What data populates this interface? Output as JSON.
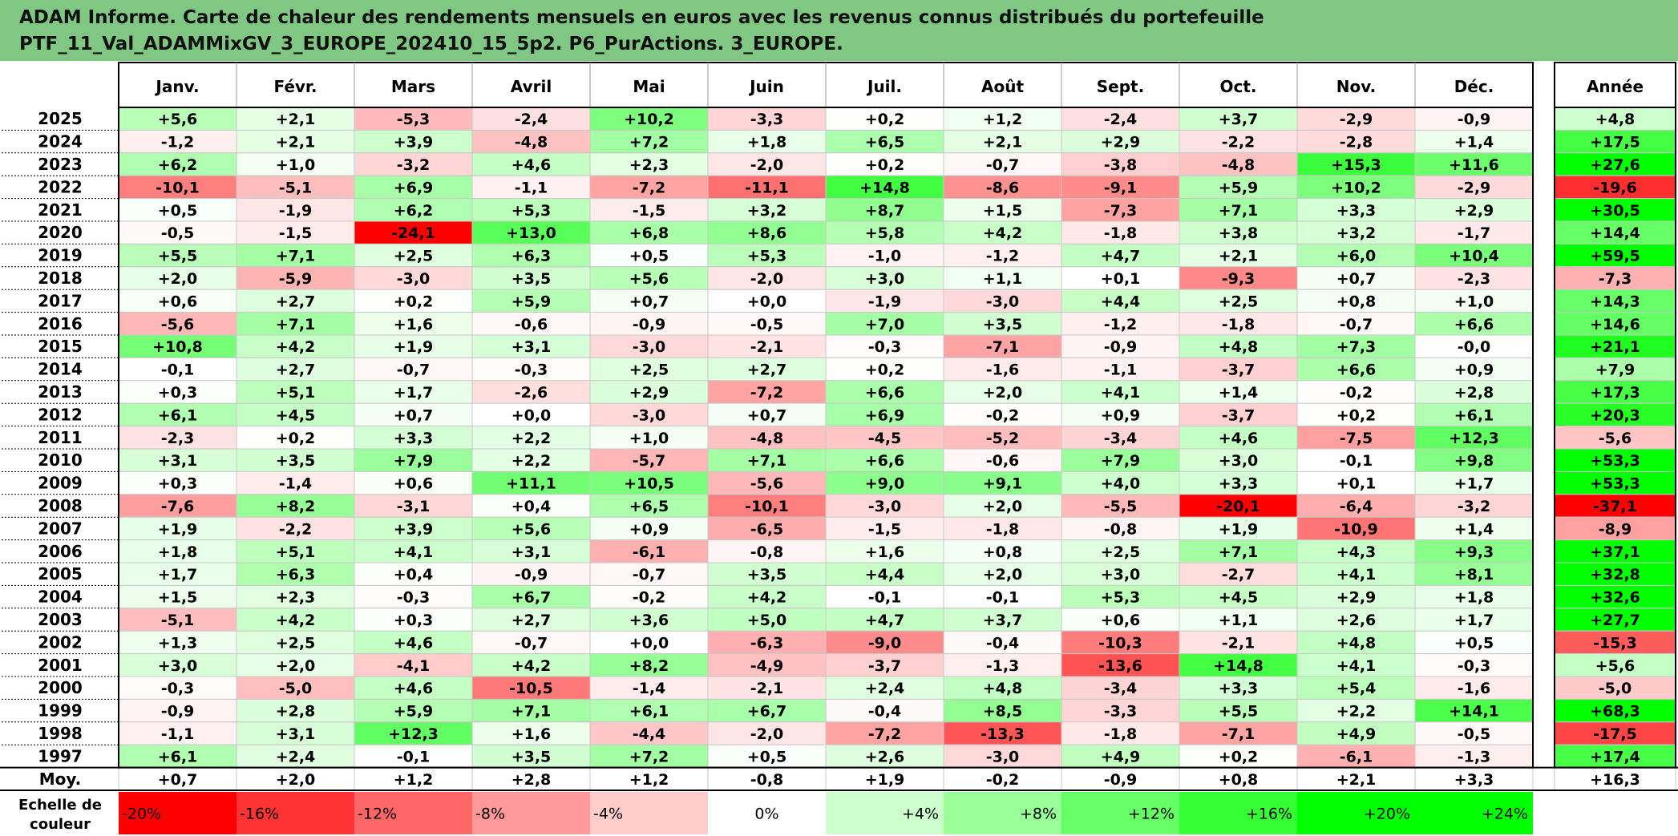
{
  "title": {
    "line1": "ADAM Informe. Carte de chaleur des rendements mensuels en euros avec les revenus connus distribués du portefeuille",
    "line2": "PTF_11_Val_ADAMMixGV_3_EUROPE_202410_15_5p2. P6_PurActions. 3_EUROPE."
  },
  "chart_data": {
    "type": "heatmap",
    "months": [
      "Janv.",
      "Févr.",
      "Mars",
      "Avril",
      "Mai",
      "Juin",
      "Juil.",
      "Août",
      "Sept.",
      "Oct.",
      "Nov.",
      "Déc."
    ],
    "year_column_label": "Année",
    "rows": [
      {
        "year": "2025",
        "values": [
          "+5,6",
          "+2,1",
          "-5,3",
          "-2,4",
          "+10,2",
          "-3,3",
          "+0,2",
          "+1,2",
          "-2,4",
          "+3,7",
          "-2,9",
          "-0,9"
        ],
        "annual": "+4,8"
      },
      {
        "year": "2024",
        "values": [
          "-1,2",
          "+2,1",
          "+3,9",
          "-4,8",
          "+7,2",
          "+1,8",
          "+6,5",
          "+2,1",
          "+2,9",
          "-2,2",
          "-2,8",
          "+1,4"
        ],
        "annual": "+17,5"
      },
      {
        "year": "2023",
        "values": [
          "+6,2",
          "+1,0",
          "-3,2",
          "+4,6",
          "+2,3",
          "-2,0",
          "+0,2",
          "-0,7",
          "-3,8",
          "-4,8",
          "+15,3",
          "+11,6"
        ],
        "annual": "+27,6"
      },
      {
        "year": "2022",
        "values": [
          "-10,1",
          "-5,1",
          "+6,9",
          "-1,1",
          "-7,2",
          "-11,1",
          "+14,8",
          "-8,6",
          "-9,1",
          "+5,9",
          "+10,2",
          "-2,9"
        ],
        "annual": "-19,6"
      },
      {
        "year": "2021",
        "values": [
          "+0,5",
          "-1,9",
          "+6,2",
          "+5,3",
          "-1,5",
          "+3,2",
          "+8,7",
          "+1,5",
          "-7,3",
          "+7,1",
          "+3,3",
          "+2,9"
        ],
        "annual": "+30,5"
      },
      {
        "year": "2020",
        "values": [
          "-0,5",
          "-1,5",
          "-24,1",
          "+13,0",
          "+6,8",
          "+8,6",
          "+5,8",
          "+4,2",
          "-1,8",
          "+3,8",
          "+3,2",
          "-1,7"
        ],
        "annual": "+14,4"
      },
      {
        "year": "2019",
        "values": [
          "+5,5",
          "+7,1",
          "+2,5",
          "+6,3",
          "+0,5",
          "+5,3",
          "-1,0",
          "-1,2",
          "+4,7",
          "+2,1",
          "+6,0",
          "+10,4"
        ],
        "annual": "+59,5"
      },
      {
        "year": "2018",
        "values": [
          "+2,0",
          "-5,9",
          "-3,0",
          "+3,5",
          "+5,6",
          "-2,0",
          "+3,0",
          "+1,1",
          "+0,1",
          "-9,3",
          "+0,7",
          "-2,3"
        ],
        "annual": "-7,3"
      },
      {
        "year": "2017",
        "values": [
          "+0,6",
          "+2,7",
          "+0,2",
          "+5,9",
          "+0,7",
          "+0,0",
          "-1,9",
          "-3,0",
          "+4,4",
          "+2,5",
          "+0,8",
          "+1,0"
        ],
        "annual": "+14,3"
      },
      {
        "year": "2016",
        "values": [
          "-5,6",
          "+7,1",
          "+1,6",
          "-0,6",
          "-0,9",
          "-0,5",
          "+7,0",
          "+3,5",
          "-1,2",
          "-1,8",
          "-0,7",
          "+6,6"
        ],
        "annual": "+14,6"
      },
      {
        "year": "2015",
        "values": [
          "+10,8",
          "+4,2",
          "+1,9",
          "+3,1",
          "-3,0",
          "-2,1",
          "-0,3",
          "-7,1",
          "-0,9",
          "+4,8",
          "+7,3",
          "-0,0"
        ],
        "annual": "+21,1"
      },
      {
        "year": "2014",
        "values": [
          "-0,1",
          "+2,7",
          "-0,7",
          "-0,3",
          "+2,5",
          "+2,7",
          "+0,2",
          "-1,6",
          "-1,1",
          "-3,7",
          "+6,6",
          "+0,9"
        ],
        "annual": "+7,9"
      },
      {
        "year": "2013",
        "values": [
          "+0,3",
          "+5,1",
          "+1,7",
          "-2,6",
          "+2,9",
          "-7,2",
          "+6,6",
          "+2,0",
          "+4,1",
          "+1,4",
          "-0,2",
          "+2,8"
        ],
        "annual": "+17,3"
      },
      {
        "year": "2012",
        "values": [
          "+6,1",
          "+4,5",
          "+0,7",
          "+0,0",
          "-3,0",
          "+0,7",
          "+6,9",
          "-0,2",
          "+0,9",
          "-3,7",
          "+0,2",
          "+6,1"
        ],
        "annual": "+20,3"
      },
      {
        "year": "2011",
        "values": [
          "-2,3",
          "+0,2",
          "+3,3",
          "+2,2",
          "+1,0",
          "-4,8",
          "-4,5",
          "-5,2",
          "-3,4",
          "+4,6",
          "-7,5",
          "+12,3"
        ],
        "annual": "-5,6"
      },
      {
        "year": "2010",
        "values": [
          "+3,1",
          "+3,5",
          "+7,9",
          "+2,2",
          "-5,7",
          "+7,1",
          "+6,6",
          "-0,6",
          "+7,9",
          "+3,0",
          "-0,1",
          "+9,8"
        ],
        "annual": "+53,3"
      },
      {
        "year": "2009",
        "values": [
          "+0,3",
          "-1,4",
          "+0,6",
          "+11,1",
          "+10,5",
          "-5,6",
          "+9,0",
          "+9,1",
          "+4,0",
          "+3,3",
          "+0,1",
          "+1,7"
        ],
        "annual": "+53,3"
      },
      {
        "year": "2008",
        "values": [
          "-7,6",
          "+8,2",
          "-3,1",
          "+0,4",
          "+6,5",
          "-10,1",
          "-3,0",
          "+2,0",
          "-5,5",
          "-20,1",
          "-6,4",
          "-3,2"
        ],
        "annual": "-37,1"
      },
      {
        "year": "2007",
        "values": [
          "+1,9",
          "-2,2",
          "+3,9",
          "+5,6",
          "+0,9",
          "-6,5",
          "-1,5",
          "-1,8",
          "-0,8",
          "+1,9",
          "-10,9",
          "+1,4"
        ],
        "annual": "-8,9"
      },
      {
        "year": "2006",
        "values": [
          "+1,8",
          "+5,1",
          "+4,1",
          "+3,1",
          "-6,1",
          "-0,8",
          "+1,6",
          "+0,8",
          "+2,5",
          "+7,1",
          "+4,3",
          "+9,3"
        ],
        "annual": "+37,1"
      },
      {
        "year": "2005",
        "values": [
          "+1,7",
          "+6,3",
          "+0,4",
          "-0,9",
          "-0,7",
          "+3,5",
          "+4,4",
          "+2,0",
          "+3,0",
          "-2,7",
          "+4,1",
          "+8,1"
        ],
        "annual": "+32,8"
      },
      {
        "year": "2004",
        "values": [
          "+1,5",
          "+2,3",
          "-0,3",
          "+6,7",
          "-0,2",
          "+4,2",
          "-0,1",
          "-0,1",
          "+5,3",
          "+4,5",
          "+2,9",
          "+1,8"
        ],
        "annual": "+32,6"
      },
      {
        "year": "2003",
        "values": [
          "-5,1",
          "+4,2",
          "+0,3",
          "+2,7",
          "+3,6",
          "+5,0",
          "+4,7",
          "+3,7",
          "+0,6",
          "+1,1",
          "+2,6",
          "+1,7"
        ],
        "annual": "+27,7"
      },
      {
        "year": "2002",
        "values": [
          "+1,3",
          "+2,5",
          "+4,6",
          "-0,7",
          "+0,0",
          "-6,3",
          "-9,0",
          "-0,4",
          "-10,3",
          "-2,1",
          "+4,8",
          "+0,5"
        ],
        "annual": "-15,3"
      },
      {
        "year": "2001",
        "values": [
          "+3,0",
          "+2,0",
          "-4,1",
          "+4,2",
          "+8,2",
          "-4,9",
          "-3,7",
          "-1,3",
          "-13,6",
          "+14,8",
          "+4,1",
          "-0,3"
        ],
        "annual": "+5,6"
      },
      {
        "year": "2000",
        "values": [
          "-0,3",
          "-5,0",
          "+4,6",
          "-10,5",
          "-1,4",
          "-2,1",
          "+2,4",
          "+4,8",
          "-3,4",
          "+3,3",
          "+5,4",
          "-1,6"
        ],
        "annual": "-5,0"
      },
      {
        "year": "1999",
        "values": [
          "-0,9",
          "+2,8",
          "+5,9",
          "+7,1",
          "+6,1",
          "+6,7",
          "-0,4",
          "+8,5",
          "-3,3",
          "+5,5",
          "+2,2",
          "+14,1"
        ],
        "annual": "+68,3"
      },
      {
        "year": "1998",
        "values": [
          "-1,1",
          "+3,1",
          "+12,3",
          "+1,6",
          "-4,4",
          "-2,0",
          "-7,2",
          "-13,3",
          "-1,8",
          "-7,1",
          "+4,9",
          "-0,5"
        ],
        "annual": "-17,5"
      },
      {
        "year": "1997",
        "values": [
          "+6,1",
          "+2,4",
          "-0,1",
          "+3,5",
          "+7,2",
          "+0,5",
          "+2,6",
          "-3,0",
          "+4,9",
          "+0,2",
          "-6,1",
          "-1,3"
        ],
        "annual": "+17,4"
      }
    ],
    "average": {
      "label": "Moy.",
      "values": [
        "+0,7",
        "+2,0",
        "+1,2",
        "+2,8",
        "+1,2",
        "-0,8",
        "+1,9",
        "-0,2",
        "-0,9",
        "+0,8",
        "+2,1",
        "+3,3"
      ],
      "annual": "+16,3"
    },
    "color_scale": {
      "label": "Echelle de couleur",
      "stops": [
        "-20%",
        "-16%",
        "-12%",
        "-8%",
        "-4%",
        "0%",
        "+4%",
        "+8%",
        "+12%",
        "+16%",
        "+20%",
        "+24%"
      ],
      "negative_color": "#ff0000",
      "positive_color": "#00ff00",
      "neutral_color": "#ffffff"
    }
  }
}
